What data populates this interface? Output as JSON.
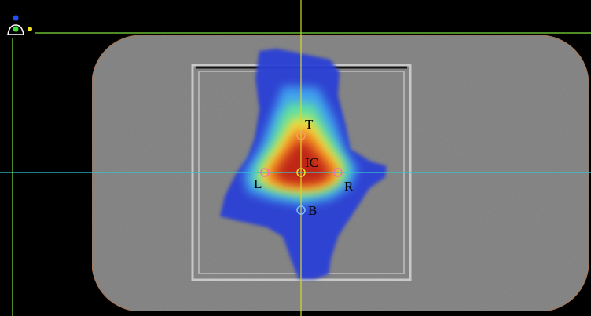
{
  "markers": [
    {
      "label": "T"
    },
    {
      "label": "IC"
    },
    {
      "label": "L"
    },
    {
      "label": "R"
    },
    {
      "label": "B"
    }
  ]
}
